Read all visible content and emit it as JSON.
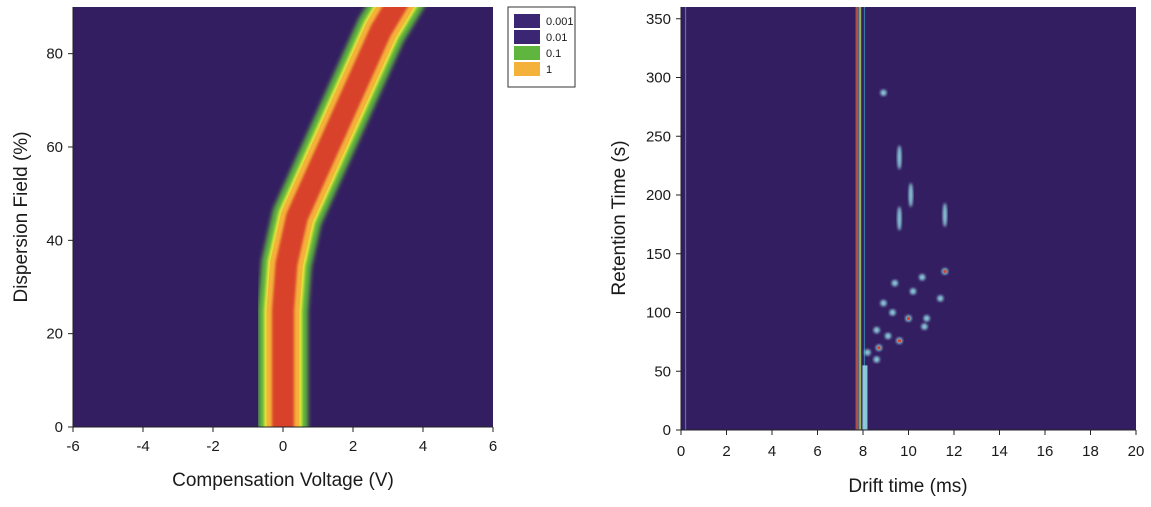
{
  "colors": {
    "background": "#341e62",
    "level_0_001": "#3a2672",
    "level_0_01": "#3a2672",
    "level_0_1": "#5fb53d",
    "level_1": "#f4b23a",
    "core": "#d9432a",
    "ridge_yellow": "#e7e83a",
    "spot_cyan": "#93d8e3"
  },
  "chart_data": [
    {
      "type": "heatmap",
      "xlabel": "Compensation Voltage (V)",
      "ylabel": "Dispersion Field (%)",
      "xlim": [
        -6,
        6
      ],
      "ylim": [
        0,
        90
      ],
      "xticks": [
        "-6",
        "-4",
        "-2",
        "0",
        "2",
        "4",
        "6"
      ],
      "yticks": [
        "0",
        "20",
        "40",
        "60",
        "80"
      ],
      "legend": {
        "placement": "top-right",
        "entries": [
          {
            "label": "0.001",
            "color": "#3a2672"
          },
          {
            "label": "0.01",
            "color": "#3a2672"
          },
          {
            "label": "0.1",
            "color": "#5fb53d"
          },
          {
            "label": "1",
            "color": "#f4b23a"
          }
        ]
      },
      "ridge": [
        {
          "x": 0.0,
          "y": 0
        },
        {
          "x": 0.0,
          "y": 25
        },
        {
          "x": 0.1,
          "y": 35
        },
        {
          "x": 0.4,
          "y": 45
        },
        {
          "x": 1.0,
          "y": 55
        },
        {
          "x": 1.6,
          "y": 65
        },
        {
          "x": 2.2,
          "y": 75
        },
        {
          "x": 2.8,
          "y": 85
        },
        {
          "x": 3.2,
          "y": 90
        }
      ]
    },
    {
      "type": "heatmap",
      "xlabel": "Drift time (ms)",
      "ylabel": "Retention Time (s)",
      "xlim": [
        0,
        20
      ],
      "ylim": [
        0,
        360
      ],
      "xticks": [
        "0",
        "2",
        "4",
        "6",
        "8",
        "10",
        "12",
        "14",
        "16",
        "18",
        "20"
      ],
      "yticks": [
        "0",
        "50",
        "100",
        "150",
        "200",
        "250",
        "300",
        "350"
      ],
      "reactant_ion_peak_ms": 7.8,
      "spots": [
        {
          "x": 8.9,
          "y": 287
        },
        {
          "x": 9.6,
          "y": 232
        },
        {
          "x": 9.6,
          "y": 180
        },
        {
          "x": 10.1,
          "y": 200
        },
        {
          "x": 11.6,
          "y": 183
        },
        {
          "x": 11.6,
          "y": 135
        },
        {
          "x": 11.4,
          "y": 112
        },
        {
          "x": 10.6,
          "y": 130
        },
        {
          "x": 10.2,
          "y": 118
        },
        {
          "x": 9.4,
          "y": 125
        },
        {
          "x": 8.9,
          "y": 108
        },
        {
          "x": 9.3,
          "y": 100
        },
        {
          "x": 10.0,
          "y": 95
        },
        {
          "x": 10.8,
          "y": 95
        },
        {
          "x": 10.7,
          "y": 88
        },
        {
          "x": 8.6,
          "y": 85
        },
        {
          "x": 9.1,
          "y": 80
        },
        {
          "x": 9.6,
          "y": 76
        },
        {
          "x": 8.7,
          "y": 70
        },
        {
          "x": 8.2,
          "y": 66
        },
        {
          "x": 8.6,
          "y": 60
        }
      ]
    }
  ]
}
